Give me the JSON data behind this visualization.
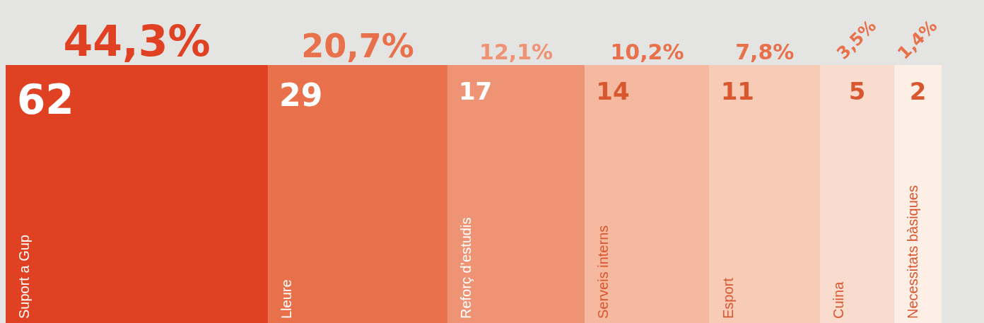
{
  "chart_data": {
    "type": "other",
    "categories": [
      "Suport a Gup",
      "Lleure",
      "Reforç d’estudis",
      "Serveis interns",
      "Esport",
      "Cuina",
      "Necessitats bàsiques"
    ],
    "values": [
      62,
      29,
      17,
      14,
      11,
      5,
      2
    ],
    "data_labels": true,
    "annotations": [
      {
        "text": "44,3%",
        "x": "Suport a Gup"
      },
      {
        "text": "20,7%",
        "x": "Lleure"
      },
      {
        "text": "12,1%",
        "x": "Reforç d’estudis"
      },
      {
        "text": "10,2%",
        "x": "Serveis interns"
      },
      {
        "text": "7,8%",
        "x": "Esport"
      },
      {
        "text": "3,5%",
        "x": "Cuina"
      },
      {
        "text": "1,4%",
        "x": "Necessitats bàsiques"
      }
    ],
    "colors": [
      "#e04122",
      "#e8704b",
      "#ee9474",
      "#f5b9a0",
      "#f8cbb6",
      "#fadccf",
      "#fdeee6"
    ]
  }
}
